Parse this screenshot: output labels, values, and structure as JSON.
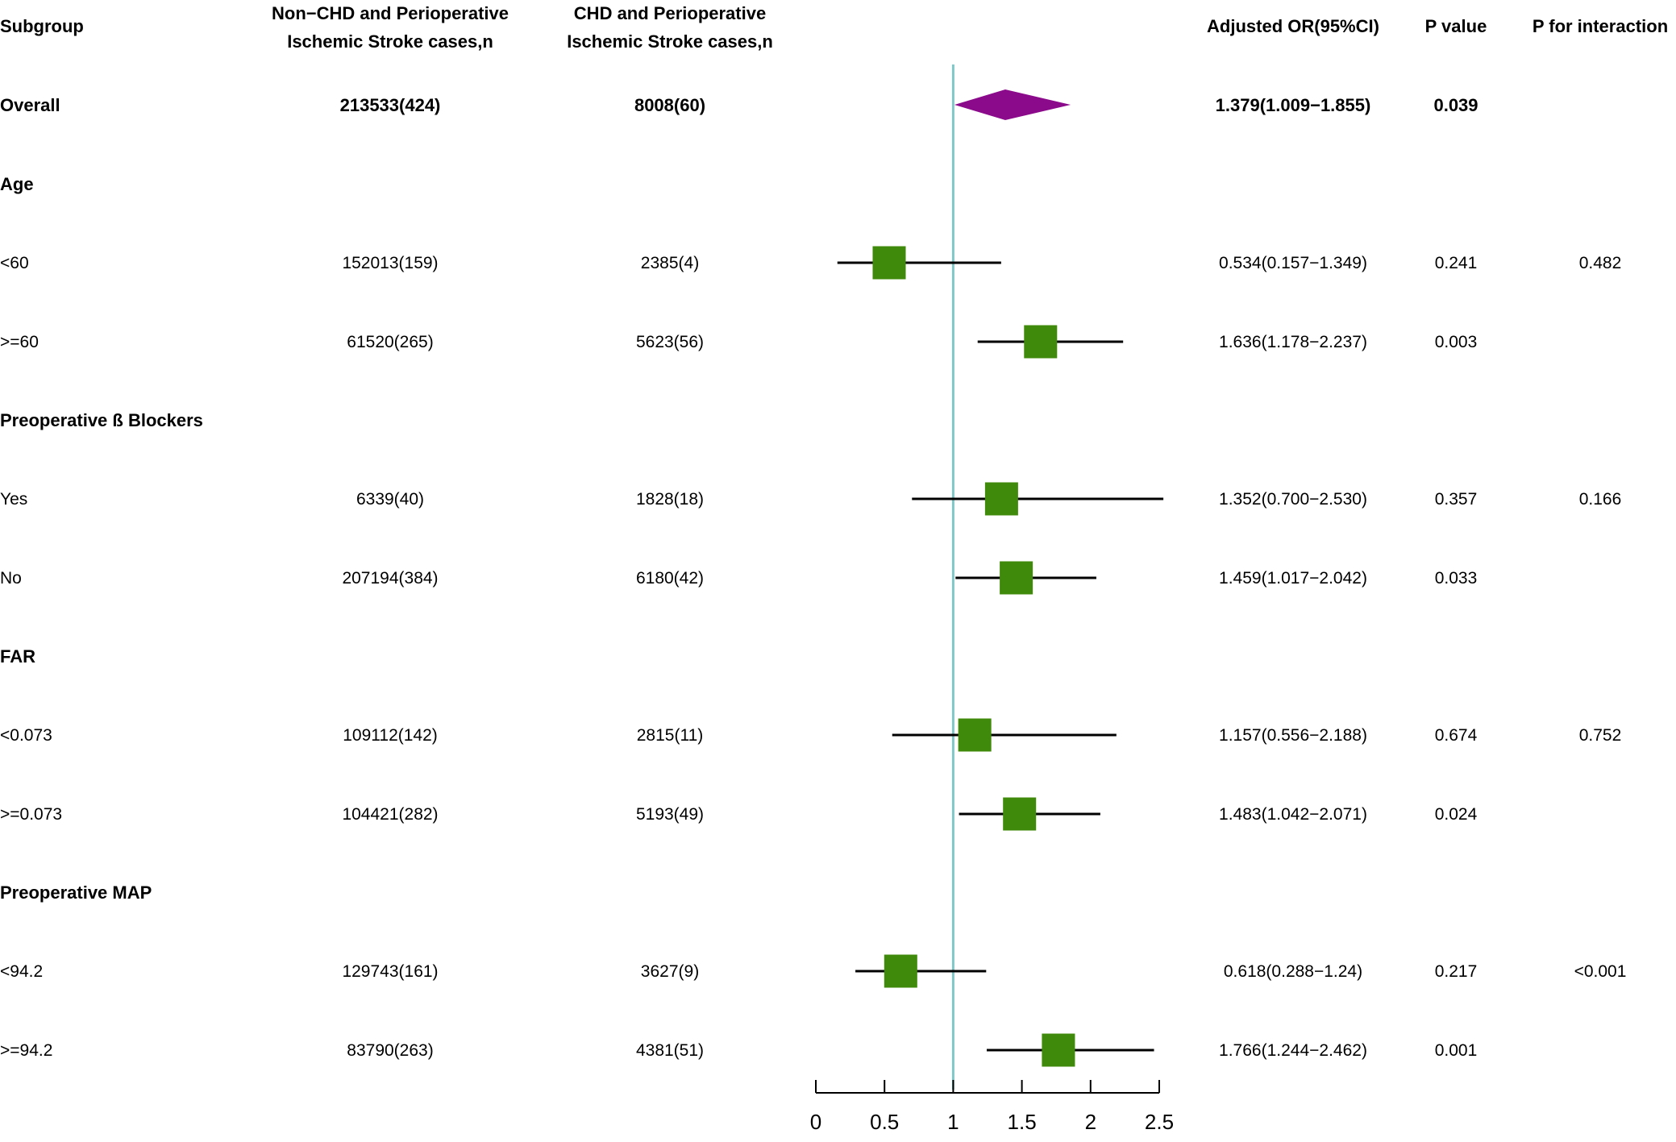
{
  "header": {
    "subgroup": "Subgroup",
    "non_chd_line1": "Non−CHD and Perioperative",
    "non_chd_line2": "Ischemic Stroke cases,n",
    "chd_line1": "CHD and Perioperative",
    "chd_line2": "Ischemic Stroke cases,n",
    "or": "Adjusted OR(95%CI)",
    "p": "P value",
    "p_int": "P for interaction"
  },
  "rows": [
    {
      "label": "Overall",
      "bold": true,
      "non_chd": "213533(424)",
      "chd": "8008(60)",
      "or_text": "1.379(1.009−1.855)",
      "p": "0.039",
      "p_int": ""
    },
    {
      "label": "Age",
      "bold": true,
      "header": true
    },
    {
      "label": "<60",
      "non_chd": "152013(159)",
      "chd": "2385(4)",
      "or_text": "0.534(0.157−1.349)",
      "p": "0.241",
      "p_int": "0.482"
    },
    {
      "label": ">=60",
      "non_chd": "61520(265)",
      "chd": "5623(56)",
      "or_text": "1.636(1.178−2.237)",
      "p": "0.003",
      "p_int": ""
    },
    {
      "label": "Preoperative ß Blockers",
      "bold": true,
      "header": true
    },
    {
      "label": "Yes",
      "non_chd": "6339(40)",
      "chd": "1828(18)",
      "or_text": "1.352(0.700−2.530)",
      "p": "0.357",
      "p_int": "0.166"
    },
    {
      "label": "No",
      "non_chd": "207194(384)",
      "chd": "6180(42)",
      "or_text": "1.459(1.017−2.042)",
      "p": "0.033",
      "p_int": ""
    },
    {
      "label": "FAR",
      "bold": true,
      "header": true
    },
    {
      "label": "<0.073",
      "non_chd": "109112(142)",
      "chd": "2815(11)",
      "or_text": "1.157(0.556−2.188)",
      "p": "0.674",
      "p_int": "0.752"
    },
    {
      "label": ">=0.073",
      "non_chd": "104421(282)",
      "chd": "5193(49)",
      "or_text": "1.483(1.042−2.071)",
      "p": "0.024",
      "p_int": ""
    },
    {
      "label": "Preoperative MAP",
      "bold": true,
      "header": true
    },
    {
      "label": "<94.2",
      "non_chd": "129743(161)",
      "chd": "3627(9)",
      "or_text": "0.618(0.288−1.24)",
      "p": "0.217",
      "p_int": "<0.001"
    },
    {
      "label": ">=94.2",
      "non_chd": "83790(263)",
      "chd": "4381(51)",
      "or_text": "1.766(1.244−2.462)",
      "p": "0.001",
      "p_int": ""
    }
  ],
  "chart_data": {
    "type": "forest",
    "title": "",
    "xlabel": "",
    "ylabel": "",
    "xlim": [
      0,
      2.5
    ],
    "xticks": [
      0,
      0.5,
      1,
      1.5,
      2,
      2.5
    ],
    "xtick_labels": [
      "0",
      "0.5",
      "1",
      "1.5",
      "2",
      "2.5"
    ],
    "reference_line": 1,
    "colors": {
      "reference": "#7ec8c8",
      "overall": "#8b0a8b",
      "subgroup": "#3f8a0a",
      "ci": "#000000"
    },
    "points": [
      {
        "name": "Overall",
        "or": 1.379,
        "lo": 1.009,
        "hi": 1.855,
        "shape": "diamond"
      },
      {
        "name": "<60",
        "or": 0.534,
        "lo": 0.157,
        "hi": 1.349,
        "shape": "square"
      },
      {
        "name": ">=60",
        "or": 1.636,
        "lo": 1.178,
        "hi": 2.237,
        "shape": "square"
      },
      {
        "name": "Yes",
        "or": 1.352,
        "lo": 0.7,
        "hi": 2.53,
        "shape": "square"
      },
      {
        "name": "No",
        "or": 1.459,
        "lo": 1.017,
        "hi": 2.042,
        "shape": "square"
      },
      {
        "name": "<0.073",
        "or": 1.157,
        "lo": 0.556,
        "hi": 2.188,
        "shape": "square"
      },
      {
        "name": ">=0.073",
        "or": 1.483,
        "lo": 1.042,
        "hi": 2.071,
        "shape": "square"
      },
      {
        "name": "<94.2",
        "or": 0.618,
        "lo": 0.288,
        "hi": 1.24,
        "shape": "square"
      },
      {
        "name": ">=94.2",
        "or": 1.766,
        "lo": 1.244,
        "hi": 2.462,
        "shape": "square"
      }
    ]
  }
}
